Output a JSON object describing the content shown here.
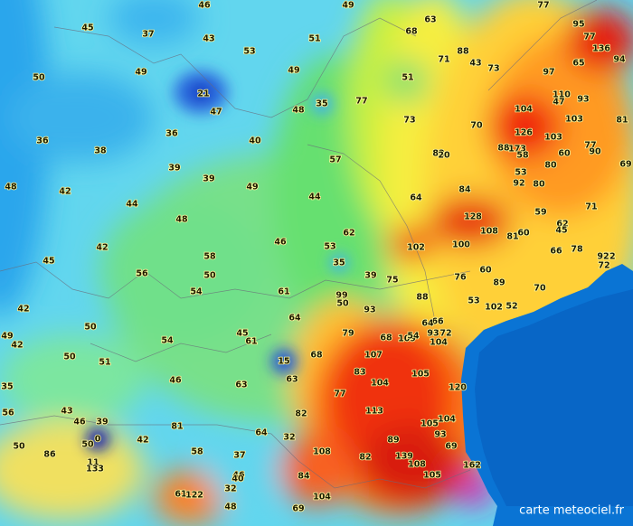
{
  "labels": [
    46,
    49,
    77,
    45,
    37,
    43,
    53,
    51,
    63,
    68,
    95,
    77,
    94,
    136,
    50,
    49,
    49,
    71,
    88,
    43,
    73,
    65,
    97,
    21,
    47,
    35,
    48,
    77,
    51,
    73,
    110,
    47,
    93,
    104,
    103,
    81,
    70,
    36,
    38,
    36,
    40,
    126,
    103,
    88,
    173,
    58,
    77,
    90,
    82,
    20,
    48,
    42,
    39,
    39,
    57,
    80,
    60,
    69,
    53,
    92,
    80,
    44,
    49,
    44,
    64,
    84,
    71,
    59,
    128,
    48,
    62,
    46,
    53,
    102,
    100,
    108,
    81,
    60,
    62,
    45,
    42,
    45,
    58,
    56,
    50,
    35,
    39,
    66,
    78,
    72,
    92,
    72,
    54,
    61,
    99,
    50,
    75,
    76,
    60,
    89,
    70,
    88,
    53,
    102,
    52,
    42,
    64,
    93,
    66,
    64,
    49,
    50,
    45,
    61,
    79,
    68,
    109,
    93,
    72,
    104,
    54,
    42,
    54,
    50,
    51,
    15,
    68,
    107,
    83,
    105,
    104,
    63,
    46,
    35,
    63,
    77,
    120,
    56,
    43,
    39,
    46,
    82,
    113,
    104,
    105,
    81,
    93,
    0,
    50,
    42,
    64,
    32,
    89,
    69,
    50,
    86,
    58,
    108,
    82,
    139,
    37,
    162,
    108,
    105,
    11,
    133,
    46,
    40,
    84,
    32,
    61,
    122,
    104,
    48,
    69
  ],
  "credit": "carte meteociel.fr"
}
